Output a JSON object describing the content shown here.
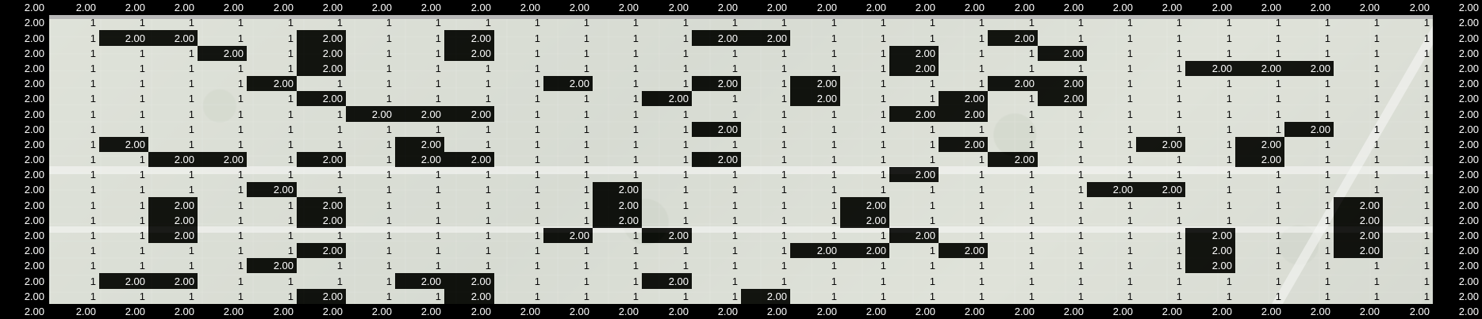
{
  "values": {
    "obstacle": "2.00",
    "free": "1",
    "border": "2.00"
  },
  "colors": {
    "obstacle": "#000000",
    "free": "#ffffff",
    "status": "#2bb24c"
  },
  "grid": {
    "rows": [
      "222222222222222222222222222222",
      "211111111111111111111111111112",
      "212211211211112211112111111112",
      "211121211211111111211211111112",
      "211111211111111111211111222112",
      "211112111112112121112211111112",
      "211111211111121121121211111112",
      "211111122211111111221111111112",
      "211111111111112111111111112112",
      "212111112111111111121112121112",
      "211221212211112111112111121112",
      "211111111111111111211111111112",
      "211112111111211111111122111112",
      "211211211111211112111111111212",
      "211211211111211112111111111212",
      "211211111112121111211111211212",
      "211111211111111122121111211212",
      "211112111111111111111111211112",
      "212211112211121111111111111112",
      "211111211211111211111111111112",
      "222222222222222222222222222222"
    ]
  }
}
